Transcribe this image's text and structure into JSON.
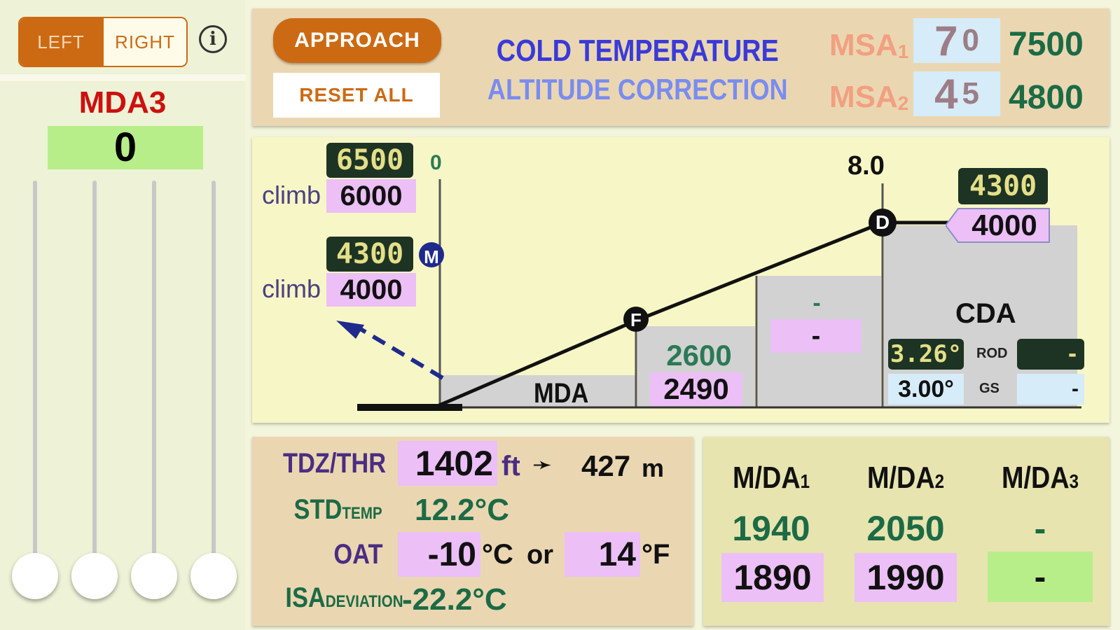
{
  "side_toggle": {
    "left_label": "LEFT",
    "right_label": "RIGHT",
    "selected": "LEFT"
  },
  "info_label": "i",
  "mda3_panel": {
    "title": "MDA3",
    "value": "0"
  },
  "header": {
    "approach_label": "APPROACH",
    "reset_label": "RESET ALL",
    "title_line1": "COLD TEMPERATURE",
    "title_line2": "ALTITUDE CORRECTION",
    "msa1": {
      "label": "MSA",
      "sub": "1",
      "input_big": "7",
      "input_small": "0",
      "result": "7500"
    },
    "msa2": {
      "label": "MSA",
      "sub": "2",
      "input_big": "4",
      "input_small": "5",
      "result": "4800"
    }
  },
  "profile": {
    "missed_approach": {
      "step1": {
        "lcd": "6500",
        "label": "climb",
        "value": "6000"
      },
      "step2": {
        "lcd": "4300",
        "label": "climb",
        "value": "4000"
      }
    },
    "m_distance": "0",
    "m_marker": "M",
    "f_marker": "F",
    "d_marker": "D",
    "d_distance": "8.0",
    "mda_label": "MDA",
    "segment1": {
      "corrected": "2600",
      "published": "2490"
    },
    "segment2": {
      "corrected": "-",
      "published": "-"
    },
    "initial": {
      "lcd": "4300",
      "value": "4000"
    },
    "cda": {
      "label": "CDA",
      "angle_corrected": "3.26°",
      "angle_published": "3.00°",
      "rod_label": "ROD",
      "rod_value": "-",
      "gs_label": "GS",
      "gs_value": "-"
    }
  },
  "conditions": {
    "tdz_label": "TDZ/THR",
    "tdz_value": "1402",
    "tdz_unit": "ft",
    "arrow": "➛",
    "tdz_m_value": "427",
    "tdz_m_unit": "m",
    "std_label": "STD",
    "std_sub": "TEMP",
    "std_value": "12.2°C",
    "oat_label": "OAT",
    "oat_c_value": "-10",
    "oat_c_unit": "°C",
    "or_label": "or",
    "oat_f_value": "14",
    "oat_f_unit": "°F",
    "isa_label": "ISA",
    "isa_sub": "DEVIATION",
    "isa_value": "-22.2°C"
  },
  "mda_table": {
    "headers": [
      {
        "label": "M/DA",
        "sub": "1"
      },
      {
        "label": "M/DA",
        "sub": "2"
      },
      {
        "label": "M/DA",
        "sub": "3"
      }
    ],
    "published": [
      "1940",
      "2050",
      "-"
    ],
    "corrected": [
      "1890",
      "1990",
      "-"
    ]
  },
  "colors": {
    "accent_orange": "#cc6a14",
    "title_blue": "#3a3ad8",
    "value_green": "#1c6b45",
    "input_pink": "#ecbff7",
    "mda_highlight_green": "#b7ee8a",
    "lcd_background": "#1d3324"
  }
}
